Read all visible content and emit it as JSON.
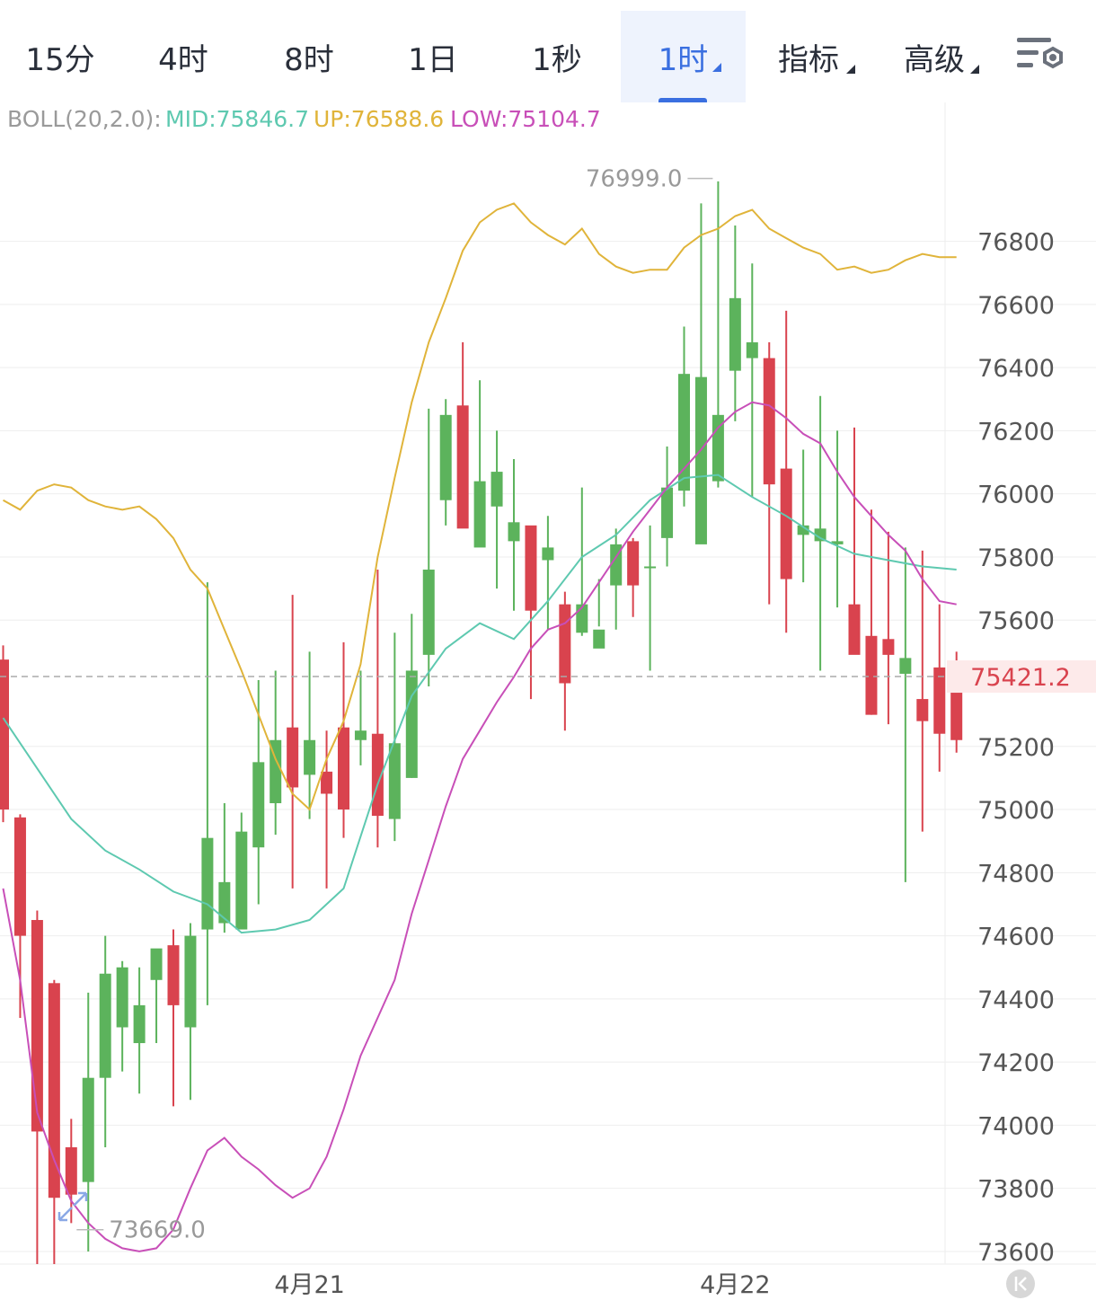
{
  "tabs": [
    {
      "label": "15分",
      "active": false,
      "dropdown": false
    },
    {
      "label": "4时",
      "active": false,
      "dropdown": false
    },
    {
      "label": "8时",
      "active": false,
      "dropdown": false
    },
    {
      "label": "1日",
      "active": false,
      "dropdown": false
    },
    {
      "label": "1秒",
      "active": false,
      "dropdown": false
    },
    {
      "label": "1时",
      "active": true,
      "dropdown": true
    },
    {
      "label": "指标",
      "active": false,
      "dropdown": true
    },
    {
      "label": "高级",
      "active": false,
      "dropdown": true
    }
  ],
  "settings_icon": "chart-settings-icon",
  "indicator": {
    "name": "BOLL(20,2.0):",
    "mid": "MID:75846.7",
    "up": "UP:76588.6",
    "low": "LOW:75104.7"
  },
  "colors": {
    "up": "#5cb35c",
    "down": "#d9434e",
    "mid": "#5ec9b0",
    "upper": "#e0b43a",
    "lower": "#c84fb8",
    "grid": "#eeeeee",
    "axis_text": "#555555",
    "current_price_bg": "#fdeaea",
    "current_price_text": "#d9434e"
  },
  "chart_data": {
    "type": "candlestick",
    "y_axis": {
      "min": 73560,
      "max": 77240,
      "ticks": [
        "76800",
        "76600",
        "76400",
        "76200",
        "76000",
        "75800",
        "75600",
        "75200",
        "75000",
        "74800",
        "74600",
        "74400",
        "74200",
        "74000",
        "73800",
        "73600"
      ],
      "position": "right"
    },
    "x_axis": {
      "labels": [
        {
          "label": "4月21",
          "index": 18
        },
        {
          "label": "4月22",
          "index": 43
        }
      ]
    },
    "current_price": "75421.2",
    "high_marker": "76999.0",
    "low_marker": "73669.0",
    "candles": [
      [
        75475,
        75000,
        75520,
        74960
      ],
      [
        74975,
        74600,
        74985,
        74340
      ],
      [
        74650,
        73980,
        74680,
        73560
      ],
      [
        74450,
        73770,
        74460,
        73560
      ],
      [
        73930,
        73780,
        74020,
        73690
      ],
      [
        73820,
        74150,
        74420,
        73600
      ],
      [
        74150,
        74480,
        74600,
        73930
      ],
      [
        74310,
        74500,
        74520,
        74170
      ],
      [
        74260,
        74380,
        74500,
        74100
      ],
      [
        74460,
        74560,
        74550,
        74260
      ],
      [
        74570,
        74380,
        74620,
        74060
      ],
      [
        74310,
        74600,
        74640,
        74080
      ],
      [
        74620,
        74910,
        75720,
        74380
      ],
      [
        74640,
        74770,
        75020,
        74610
      ],
      [
        74620,
        74930,
        74990,
        74620
      ],
      [
        74880,
        75150,
        75410,
        74700
      ],
      [
        75020,
        75220,
        75440,
        74920
      ],
      [
        75260,
        75070,
        75680,
        74750
      ],
      [
        75110,
        75220,
        75500,
        74970
      ],
      [
        75120,
        75050,
        75250,
        74750
      ],
      [
        75260,
        75000,
        75530,
        74910
      ],
      [
        75220,
        75250,
        75440,
        75140
      ],
      [
        75240,
        74980,
        75760,
        74880
      ],
      [
        74970,
        75210,
        75560,
        74900
      ],
      [
        75100,
        75440,
        75620,
        75100
      ],
      [
        75490,
        75760,
        76270,
        75390
      ],
      [
        75980,
        76250,
        76300,
        75900
      ],
      [
        76280,
        75890,
        76480,
        75940
      ],
      [
        75830,
        76040,
        76360,
        75950
      ],
      [
        75960,
        76070,
        76200,
        75700
      ],
      [
        75850,
        75910,
        76110,
        75630
      ],
      [
        75900,
        75630,
        75770,
        75350
      ],
      [
        75790,
        75830,
        75930,
        75570
      ],
      [
        75650,
        75400,
        75690,
        75250
      ],
      [
        75560,
        75650,
        76020,
        75550
      ],
      [
        75510,
        75570,
        75730,
        75580
      ],
      [
        75710,
        75840,
        75890,
        75570
      ],
      [
        75850,
        75710,
        75860,
        75610
      ],
      [
        75770,
        75770,
        75900,
        75440
      ],
      [
        75860,
        76020,
        76150,
        75770
      ],
      [
        76010,
        76380,
        76530,
        75960
      ],
      [
        75840,
        76370,
        76920,
        75850
      ],
      [
        76040,
        76250,
        76990,
        76020
      ],
      [
        76390,
        76620,
        76850,
        76230
      ],
      [
        76430,
        76480,
        76730,
        75990
      ],
      [
        76430,
        76030,
        76480,
        75650
      ],
      [
        76080,
        75730,
        76580,
        75560
      ],
      [
        75870,
        75900,
        76140,
        75720
      ],
      [
        75850,
        75890,
        76310,
        75440
      ],
      [
        75840,
        75850,
        76200,
        75640
      ],
      [
        75650,
        75490,
        76210,
        75590
      ],
      [
        75550,
        75300,
        75950,
        75300
      ],
      [
        75540,
        75490,
        75880,
        75270
      ],
      [
        75430,
        75480,
        75830,
        74770
      ],
      [
        75350,
        75280,
        75820,
        74930
      ],
      [
        75450,
        75240,
        75650,
        75120
      ],
      [
        75420,
        75220,
        75500,
        75180
      ]
    ],
    "boll_mid": [
      [
        0,
        75290
      ],
      [
        4,
        74970
      ],
      [
        6,
        74870
      ],
      [
        8,
        74810
      ],
      [
        10,
        74740
      ],
      [
        12,
        74700
      ],
      [
        14,
        74610
      ],
      [
        16,
        74620
      ],
      [
        18,
        74650
      ],
      [
        20,
        74750
      ],
      [
        22,
        75080
      ],
      [
        24,
        75360
      ],
      [
        26,
        75510
      ],
      [
        28,
        75590
      ],
      [
        30,
        75540
      ],
      [
        32,
        75660
      ],
      [
        34,
        75800
      ],
      [
        36,
        75870
      ],
      [
        38,
        75980
      ],
      [
        40,
        76050
      ],
      [
        42,
        76060
      ],
      [
        44,
        75990
      ],
      [
        46,
        75930
      ],
      [
        48,
        75860
      ],
      [
        50,
        75810
      ],
      [
        52,
        75790
      ],
      [
        54,
        75770
      ],
      [
        56,
        75760
      ]
    ],
    "boll_upper": [
      [
        0,
        75980
      ],
      [
        1,
        75950
      ],
      [
        2,
        76010
      ],
      [
        3,
        76030
      ],
      [
        4,
        76020
      ],
      [
        5,
        75980
      ],
      [
        6,
        75960
      ],
      [
        7,
        75950
      ],
      [
        8,
        75960
      ],
      [
        9,
        75920
      ],
      [
        10,
        75860
      ],
      [
        11,
        75760
      ],
      [
        12,
        75700
      ],
      [
        13,
        75570
      ],
      [
        14,
        75440
      ],
      [
        15,
        75300
      ],
      [
        16,
        75160
      ],
      [
        17,
        75050
      ],
      [
        18,
        75000
      ],
      [
        19,
        75160
      ],
      [
        20,
        75280
      ],
      [
        21,
        75460
      ],
      [
        22,
        75800
      ],
      [
        23,
        76050
      ],
      [
        24,
        76290
      ],
      [
        25,
        76480
      ],
      [
        26,
        76620
      ],
      [
        27,
        76770
      ],
      [
        28,
        76860
      ],
      [
        29,
        76900
      ],
      [
        30,
        76920
      ],
      [
        31,
        76860
      ],
      [
        32,
        76820
      ],
      [
        33,
        76790
      ],
      [
        34,
        76840
      ],
      [
        35,
        76760
      ],
      [
        36,
        76720
      ],
      [
        37,
        76700
      ],
      [
        38,
        76710
      ],
      [
        39,
        76710
      ],
      [
        40,
        76780
      ],
      [
        41,
        76820
      ],
      [
        42,
        76840
      ],
      [
        43,
        76880
      ],
      [
        44,
        76900
      ],
      [
        45,
        76840
      ],
      [
        46,
        76810
      ],
      [
        47,
        76780
      ],
      [
        48,
        76760
      ],
      [
        49,
        76710
      ],
      [
        50,
        76720
      ],
      [
        51,
        76700
      ],
      [
        52,
        76710
      ],
      [
        53,
        76740
      ],
      [
        54,
        76760
      ],
      [
        55,
        76750
      ],
      [
        56,
        76750
      ]
    ],
    "boll_lower": [
      [
        0,
        74750
      ],
      [
        1,
        74460
      ],
      [
        2,
        74040
      ],
      [
        3,
        73890
      ],
      [
        4,
        73760
      ],
      [
        5,
        73690
      ],
      [
        6,
        73640
      ],
      [
        7,
        73610
      ],
      [
        8,
        73600
      ],
      [
        9,
        73610
      ],
      [
        10,
        73670
      ],
      [
        11,
        73800
      ],
      [
        12,
        73920
      ],
      [
        13,
        73960
      ],
      [
        14,
        73900
      ],
      [
        15,
        73860
      ],
      [
        16,
        73810
      ],
      [
        17,
        73770
      ],
      [
        18,
        73800
      ],
      [
        19,
        73900
      ],
      [
        20,
        74050
      ],
      [
        21,
        74220
      ],
      [
        22,
        74340
      ],
      [
        23,
        74460
      ],
      [
        24,
        74670
      ],
      [
        25,
        74840
      ],
      [
        26,
        75010
      ],
      [
        27,
        75160
      ],
      [
        28,
        75250
      ],
      [
        29,
        75340
      ],
      [
        30,
        75420
      ],
      [
        31,
        75510
      ],
      [
        32,
        75570
      ],
      [
        33,
        75590
      ],
      [
        34,
        75640
      ],
      [
        35,
        75720
      ],
      [
        36,
        75800
      ],
      [
        37,
        75880
      ],
      [
        38,
        75950
      ],
      [
        39,
        76020
      ],
      [
        40,
        76080
      ],
      [
        41,
        76140
      ],
      [
        42,
        76210
      ],
      [
        43,
        76260
      ],
      [
        44,
        76290
      ],
      [
        45,
        76280
      ],
      [
        46,
        76240
      ],
      [
        47,
        76190
      ],
      [
        48,
        76160
      ],
      [
        49,
        76070
      ],
      [
        50,
        75990
      ],
      [
        51,
        75930
      ],
      [
        52,
        75870
      ],
      [
        53,
        75820
      ],
      [
        54,
        75730
      ],
      [
        55,
        75660
      ],
      [
        56,
        75650
      ]
    ]
  }
}
